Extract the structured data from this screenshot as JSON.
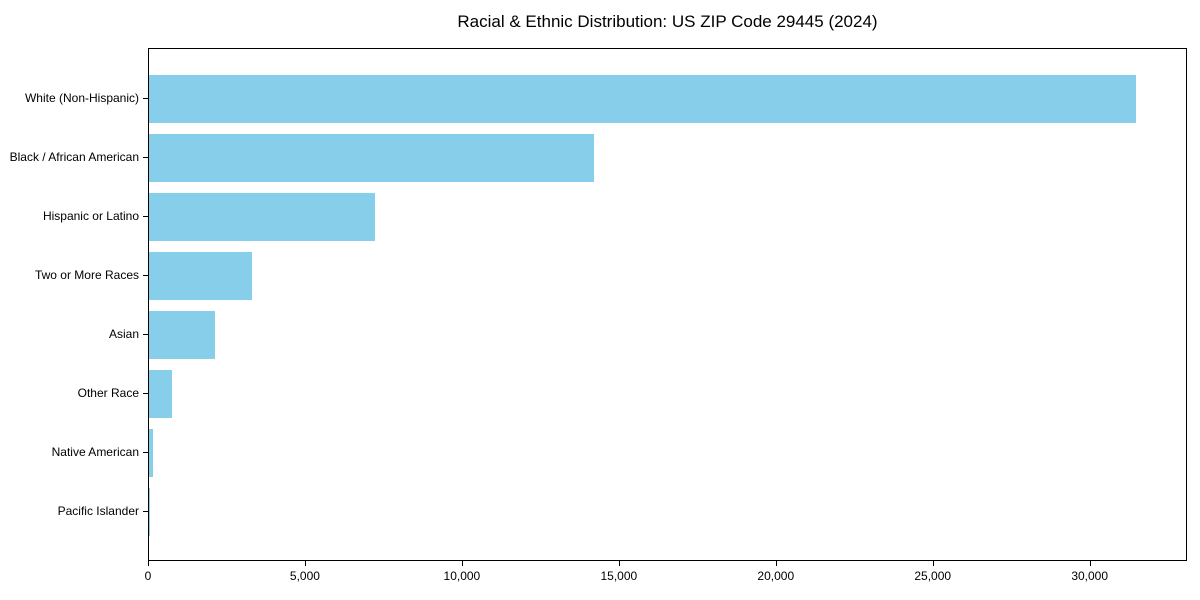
{
  "chart_data": {
    "type": "bar",
    "orientation": "horizontal",
    "title": "Racial & Ethnic Distribution: US ZIP Code 29445 (2024)",
    "categories": [
      "White (Non-Hispanic)",
      "Black / African American",
      "Hispanic or Latino",
      "Two or More Races",
      "Asian",
      "Other Race",
      "Native American",
      "Pacific Islander"
    ],
    "values": [
      31500,
      14200,
      7200,
      3300,
      2100,
      750,
      120,
      25
    ],
    "bar_color": "#87CEEB",
    "xlabel": "",
    "ylabel": "",
    "xlim": [
      0,
      33100
    ],
    "x_ticks": [
      0,
      5000,
      10000,
      15000,
      20000,
      25000,
      30000
    ],
    "x_tick_labels": [
      "0",
      "5,000",
      "10,000",
      "15,000",
      "20,000",
      "25,000",
      "30,000"
    ],
    "grid": false,
    "legend": null,
    "plot_border_color": "#000000",
    "background_color": "#ffffff"
  }
}
